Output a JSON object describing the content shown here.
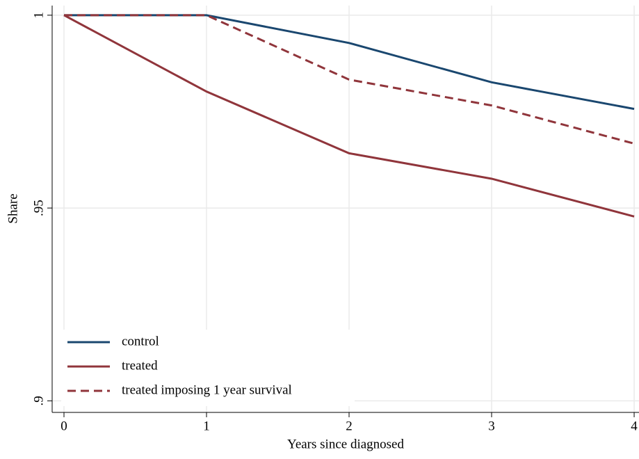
{
  "chart_data": {
    "type": "line",
    "x": [
      0,
      1,
      2,
      3,
      4
    ],
    "series": [
      {
        "name": "control",
        "color": "#1a476f",
        "style": "solid",
        "values": [
          1,
          1,
          0.9928,
          0.9826,
          0.9757
        ]
      },
      {
        "name": "treated",
        "color": "#90353b",
        "style": "solid",
        "values": [
          1,
          0.9802,
          0.9642,
          0.9576,
          0.9478
        ]
      },
      {
        "name": "treated imposing 1 year survival",
        "color": "#90353b",
        "style": "dashed",
        "values": [
          1,
          1,
          0.9833,
          0.9766,
          0.9667
        ]
      }
    ],
    "xlabel": "Years since diagnosed",
    "ylabel": "Share",
    "xlim": [
      -0.083,
      4.034
    ],
    "ylim": [
      0.897,
      1.0025
    ],
    "xticks": [
      0,
      1,
      2,
      3,
      4
    ],
    "yticks": [
      {
        "value": 0.9,
        "label": ".9"
      },
      {
        "value": 0.95,
        "label": ".95"
      },
      1
    ],
    "grid": true,
    "legend": "lower left"
  }
}
